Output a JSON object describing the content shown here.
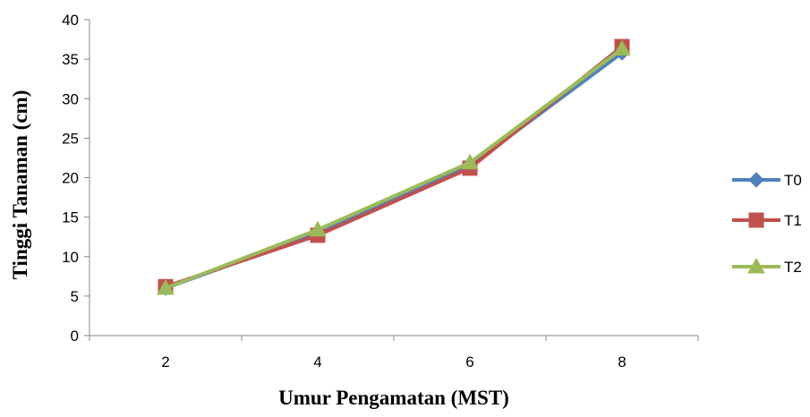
{
  "chart_data": {
    "type": "line",
    "title": "",
    "xlabel": "Umur Pengamatan (MST)",
    "ylabel": "Tinggi Tanaman (cm)",
    "categories": [
      "2",
      "4",
      "6",
      "8"
    ],
    "ylim": [
      0,
      40
    ],
    "yticks": [
      0,
      5,
      10,
      15,
      20,
      25,
      30,
      35,
      40
    ],
    "grid": false,
    "legend_position": "right",
    "series": [
      {
        "name": "T0",
        "values": [
          6.0,
          13.0,
          21.5,
          35.8
        ],
        "color": "#4f81bd",
        "marker": "diamond"
      },
      {
        "name": "T1",
        "values": [
          6.2,
          12.7,
          21.2,
          36.6
        ],
        "color": "#c0504d",
        "marker": "square"
      },
      {
        "name": "T2",
        "values": [
          6.0,
          13.4,
          21.9,
          36.3
        ],
        "color": "#9bbb59",
        "marker": "triangle"
      }
    ]
  }
}
